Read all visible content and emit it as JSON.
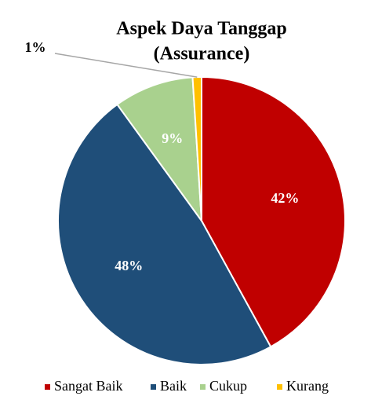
{
  "chart_data": {
    "type": "pie",
    "title": [
      "Aspek Daya Tanggap",
      "(Assurance)"
    ],
    "categories": [
      "Sangat Baik",
      "Baik",
      "Cukup",
      "Kurang"
    ],
    "values": [
      42,
      48,
      9,
      1
    ],
    "value_labels": [
      "42%",
      "48%",
      "9%",
      "1%"
    ],
    "colors": [
      "#c00000",
      "#1f4e79",
      "#a9d18e",
      "#ffc000"
    ],
    "legend": "bottom"
  }
}
